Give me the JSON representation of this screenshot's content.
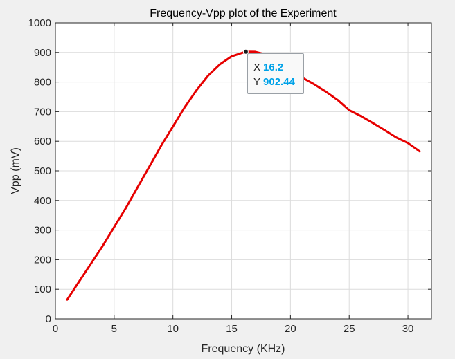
{
  "chart_data": {
    "type": "line",
    "title": "Frequency-Vpp plot of the Experiment",
    "xlabel": "Frequency (KHz)",
    "ylabel": "Vpp (mV)",
    "xlim": [
      0,
      32
    ],
    "ylim": [
      0,
      1000
    ],
    "xticks": [
      0,
      5,
      10,
      15,
      20,
      25,
      30
    ],
    "yticks": [
      0,
      100,
      200,
      300,
      400,
      500,
      600,
      700,
      800,
      900,
      1000
    ],
    "grid": true,
    "series": [
      {
        "color": "#e60000",
        "x": [
          1,
          2,
          3,
          4,
          5,
          6,
          7,
          8,
          9,
          10,
          11,
          12,
          13,
          14,
          15,
          16,
          16.2,
          17,
          18,
          19,
          20,
          21,
          22,
          23,
          24,
          25,
          26,
          27,
          28,
          29,
          30,
          31
        ],
        "y": [
          65,
          125,
          185,
          245,
          310,
          375,
          445,
          515,
          585,
          650,
          715,
          772,
          822,
          860,
          887,
          900,
          902.44,
          902,
          892,
          870,
          842,
          815,
          793,
          768,
          740,
          705,
          685,
          662,
          638,
          613,
          594,
          566
        ]
      }
    ],
    "datatip": {
      "x_label": "X",
      "x_value": "16.2",
      "y_label": "Y",
      "y_value": "902.44"
    }
  }
}
